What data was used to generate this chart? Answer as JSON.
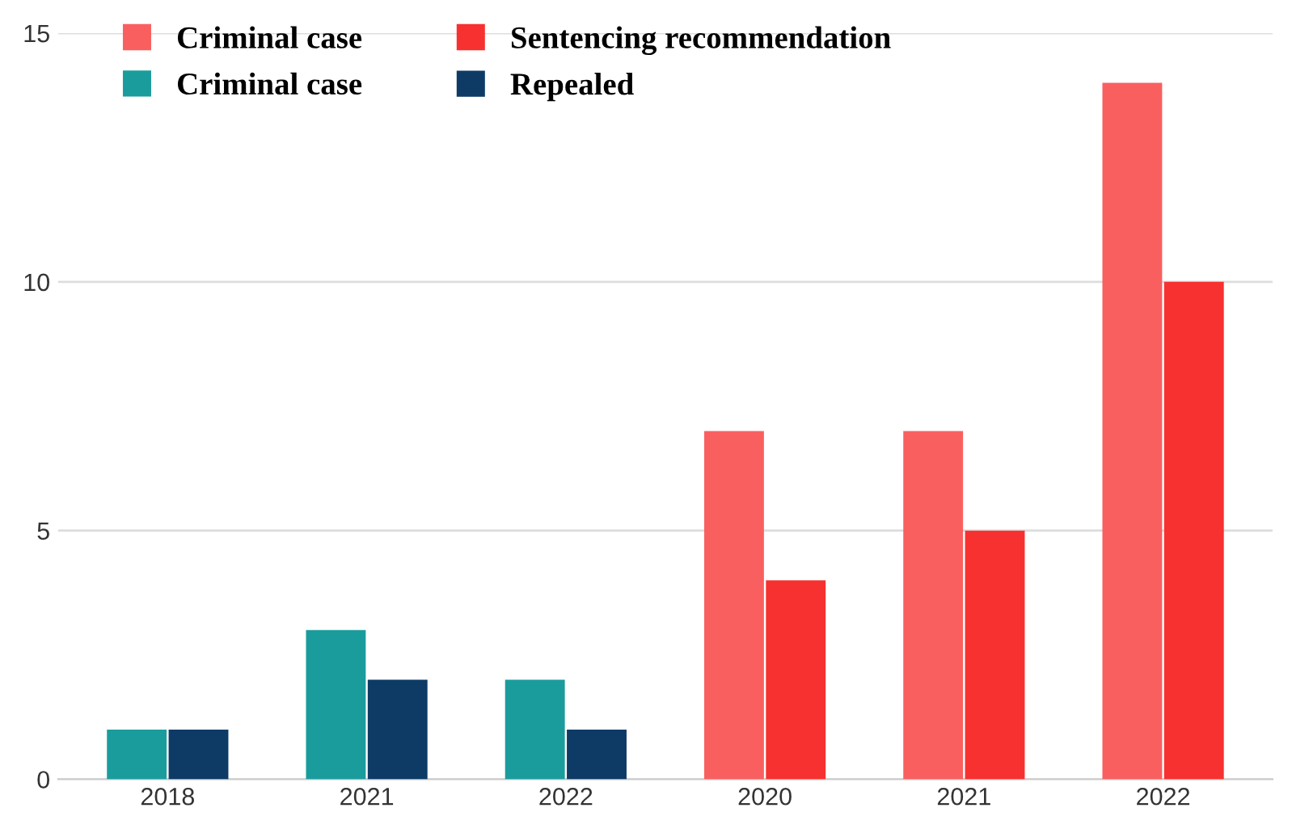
{
  "chart_data": {
    "type": "bar",
    "categories": [
      "2018",
      "2021",
      "2022",
      "2020",
      "2021",
      "2022"
    ],
    "series": [
      {
        "name": "Criminal case",
        "color": "#fa5f5f",
        "values": [
          null,
          null,
          null,
          7,
          7,
          14
        ]
      },
      {
        "name": "Criminal case",
        "color": "#1a9c9c",
        "values": [
          1,
          3,
          2,
          null,
          null,
          null
        ]
      },
      {
        "name": "Sentencing recommendation",
        "color": "#f7312f",
        "values": [
          null,
          null,
          null,
          4,
          5,
          10
        ]
      },
      {
        "name": "Repealed",
        "color": "#0d3b66",
        "values": [
          1,
          2,
          1,
          null,
          null,
          null
        ]
      }
    ],
    "ylim": [
      0,
      15
    ],
    "yticks": [
      0,
      5,
      10,
      15
    ],
    "grid": "y",
    "legend": "top left"
  }
}
